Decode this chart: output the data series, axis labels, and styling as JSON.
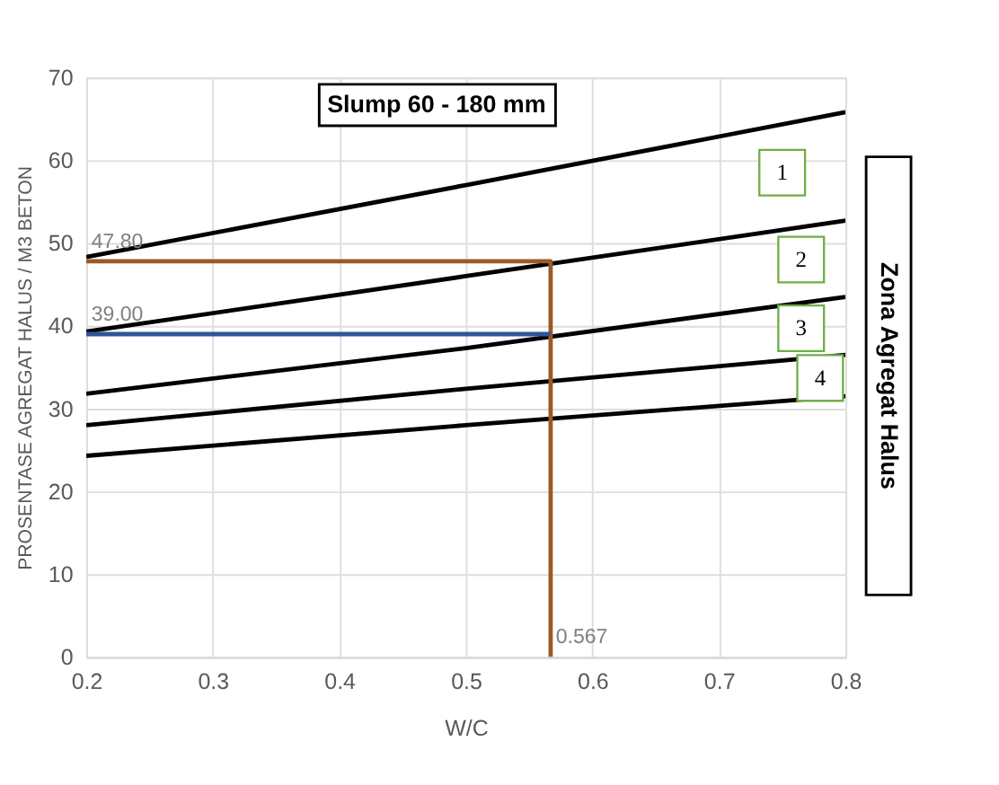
{
  "chart_data": {
    "type": "line",
    "title": "Slump 60 - 180 mm",
    "xlabel": "W/C",
    "ylabel": "PROSENTASE AGREGAT HALUS / M3 BETON",
    "xlim": [
      0.2,
      0.8
    ],
    "xticks": [
      0.2,
      0.3,
      0.4,
      0.5,
      0.6,
      0.7,
      0.8
    ],
    "ylim": [
      0,
      70
    ],
    "yticks": [
      0,
      10,
      20,
      30,
      40,
      50,
      60,
      70
    ],
    "grid": true,
    "legend": false,
    "marker": "none",
    "line_style": "solid",
    "series": [
      {
        "color": "#000000",
        "x": [
          0.2,
          0.5,
          0.8
        ],
        "values": [
          48.3,
          57.0,
          65.8
        ]
      },
      {
        "color": "#000000",
        "x": [
          0.2,
          0.5,
          0.8
        ],
        "values": [
          39.3,
          46.0,
          52.7
        ]
      },
      {
        "color": "#000000",
        "x": [
          0.2,
          0.5,
          0.8
        ],
        "values": [
          31.8,
          37.3,
          43.5
        ]
      },
      {
        "color": "#000000",
        "x": [
          0.2,
          0.5,
          0.8
        ],
        "values": [
          28.0,
          32.4,
          36.5
        ]
      },
      {
        "color": "#000000",
        "x": [
          0.2,
          0.5,
          0.8
        ],
        "values": [
          24.3,
          28.0,
          31.5
        ]
      },
      {
        "color": "#9c5a25",
        "x": [
          0.2,
          0.567,
          0.567
        ],
        "values": [
          47.8,
          47.8,
          0
        ]
      },
      {
        "color": "#2f5597",
        "x": [
          0.2,
          0.567
        ],
        "values": [
          39.0,
          39.0
        ]
      }
    ],
    "annotations": [
      {
        "text": "47.80",
        "x": 0.2,
        "y": 47.8
      },
      {
        "text": "39.00",
        "x": 0.2,
        "y": 39.0
      },
      {
        "text": "0.567",
        "x": 0.567,
        "y": 0
      },
      {
        "text": "1",
        "x": 0.75,
        "y": 58.5
      },
      {
        "text": "2",
        "x": 0.765,
        "y": 48
      },
      {
        "text": "3",
        "x": 0.765,
        "y": 39.7
      },
      {
        "text": "4",
        "x": 0.78,
        "y": 33.7
      },
      "Zona Agregat Halus"
    ]
  }
}
